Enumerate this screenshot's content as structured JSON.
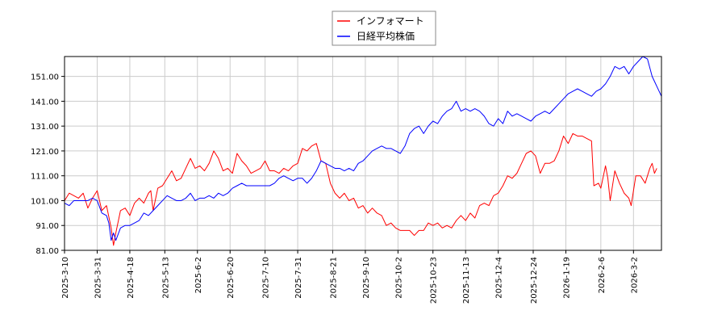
{
  "chart_data": {
    "type": "line",
    "title": "",
    "xlabel": "",
    "ylabel": "",
    "ylim": [
      81.0,
      159.0
    ],
    "y_ticks": [
      "81.00",
      "91.00",
      "101.00",
      "111.00",
      "121.00",
      "131.00",
      "141.00",
      "151.00"
    ],
    "x_tick_labels": [
      "2025-3-10",
      "2025-3-31",
      "2025-4-18",
      "2025-5-13",
      "2025-6-2",
      "2025-6-20",
      "2025-7-10",
      "2025-7-31",
      "2025-8-21",
      "2025-9-10",
      "2025-10-2",
      "2025-10-23",
      "2025-11-13",
      "2025-12-4",
      "2025-12-24",
      "2026-1-19",
      "2026-2-6",
      "2026-3-2"
    ],
    "x_tick_pos": [
      0,
      14,
      28,
      43,
      57,
      71,
      86,
      100,
      115,
      129,
      143,
      158,
      172,
      186,
      201,
      215,
      230,
      244
    ],
    "x_max": 251,
    "grid": true,
    "legend_position": "top-center",
    "series": [
      {
        "name": "インフォマート",
        "color": "#ff0000",
        "points": [
          [
            0,
            101
          ],
          [
            2,
            104
          ],
          [
            4,
            103
          ],
          [
            6,
            102
          ],
          [
            8,
            104
          ],
          [
            10,
            98
          ],
          [
            12,
            102
          ],
          [
            14,
            105
          ],
          [
            16,
            97
          ],
          [
            18,
            99
          ],
          [
            20,
            90
          ],
          [
            21,
            83
          ],
          [
            22,
            88
          ],
          [
            24,
            97
          ],
          [
            26,
            98
          ],
          [
            28,
            95
          ],
          [
            30,
            100
          ],
          [
            32,
            102
          ],
          [
            34,
            100
          ],
          [
            36,
            104
          ],
          [
            37,
            105
          ],
          [
            38,
            97
          ],
          [
            40,
            106
          ],
          [
            42,
            107
          ],
          [
            44,
            110
          ],
          [
            46,
            113
          ],
          [
            48,
            109
          ],
          [
            50,
            110
          ],
          [
            52,
            114
          ],
          [
            54,
            118
          ],
          [
            56,
            114
          ],
          [
            58,
            115
          ],
          [
            60,
            113
          ],
          [
            62,
            116
          ],
          [
            64,
            121
          ],
          [
            66,
            118
          ],
          [
            68,
            113
          ],
          [
            70,
            114
          ],
          [
            72,
            112
          ],
          [
            74,
            120
          ],
          [
            76,
            117
          ],
          [
            78,
            115
          ],
          [
            80,
            112
          ],
          [
            82,
            113
          ],
          [
            84,
            114
          ],
          [
            86,
            117
          ],
          [
            88,
            113
          ],
          [
            90,
            113
          ],
          [
            92,
            112
          ],
          [
            94,
            114
          ],
          [
            96,
            113
          ],
          [
            98,
            115
          ],
          [
            100,
            116
          ],
          [
            102,
            122
          ],
          [
            104,
            121
          ],
          [
            106,
            123
          ],
          [
            108,
            124
          ],
          [
            110,
            117
          ],
          [
            112,
            116
          ],
          [
            114,
            108
          ],
          [
            116,
            104
          ],
          [
            118,
            102
          ],
          [
            120,
            104
          ],
          [
            122,
            101
          ],
          [
            124,
            102
          ],
          [
            126,
            98
          ],
          [
            128,
            99
          ],
          [
            130,
            96
          ],
          [
            132,
            98
          ],
          [
            134,
            96
          ],
          [
            136,
            95
          ],
          [
            138,
            91
          ],
          [
            140,
            92
          ],
          [
            142,
            90
          ],
          [
            144,
            89
          ],
          [
            146,
            89
          ],
          [
            148,
            89
          ],
          [
            150,
            87
          ],
          [
            152,
            89
          ],
          [
            154,
            89
          ],
          [
            156,
            92
          ],
          [
            158,
            91
          ],
          [
            160,
            92
          ],
          [
            162,
            90
          ],
          [
            164,
            91
          ],
          [
            166,
            90
          ],
          [
            168,
            93
          ],
          [
            170,
            95
          ],
          [
            172,
            93
          ],
          [
            174,
            96
          ],
          [
            176,
            94
          ],
          [
            178,
            99
          ],
          [
            180,
            100
          ],
          [
            182,
            99
          ],
          [
            184,
            103
          ],
          [
            186,
            104
          ],
          [
            188,
            107
          ],
          [
            190,
            111
          ],
          [
            192,
            110
          ],
          [
            194,
            112
          ],
          [
            196,
            116
          ],
          [
            198,
            120
          ],
          [
            200,
            121
          ],
          [
            202,
            119
          ],
          [
            204,
            112
          ],
          [
            206,
            116
          ],
          [
            208,
            116
          ],
          [
            210,
            117
          ],
          [
            212,
            121
          ],
          [
            214,
            127
          ],
          [
            216,
            124
          ],
          [
            218,
            128
          ],
          [
            220,
            127
          ],
          [
            222,
            127
          ],
          [
            224,
            126
          ],
          [
            226,
            125
          ],
          [
            227,
            107
          ],
          [
            229,
            108
          ],
          [
            230,
            106
          ],
          [
            232,
            115
          ],
          [
            233,
            110
          ],
          [
            234,
            101
          ],
          [
            236,
            113
          ],
          [
            238,
            108
          ],
          [
            240,
            104
          ],
          [
            242,
            102
          ],
          [
            243,
            99
          ],
          [
            245,
            111
          ],
          [
            247,
            111
          ],
          [
            249,
            108
          ],
          [
            251,
            114
          ],
          [
            252,
            116
          ],
          [
            253,
            112
          ],
          [
            254,
            114
          ]
        ]
      },
      {
        "name": "日経平均株価",
        "color": "#0000ff",
        "points": [
          [
            0,
            100
          ],
          [
            2,
            99
          ],
          [
            4,
            101
          ],
          [
            6,
            101
          ],
          [
            8,
            101
          ],
          [
            10,
            101
          ],
          [
            12,
            102
          ],
          [
            14,
            101
          ],
          [
            16,
            96
          ],
          [
            18,
            95
          ],
          [
            19,
            92
          ],
          [
            20,
            85
          ],
          [
            21,
            88
          ],
          [
            22,
            85
          ],
          [
            24,
            90
          ],
          [
            26,
            91
          ],
          [
            28,
            91
          ],
          [
            30,
            92
          ],
          [
            32,
            93
          ],
          [
            34,
            96
          ],
          [
            36,
            95
          ],
          [
            38,
            97
          ],
          [
            40,
            99
          ],
          [
            42,
            101
          ],
          [
            44,
            103
          ],
          [
            46,
            102
          ],
          [
            48,
            101
          ],
          [
            50,
            101
          ],
          [
            52,
            102
          ],
          [
            54,
            104
          ],
          [
            56,
            101
          ],
          [
            58,
            102
          ],
          [
            60,
            102
          ],
          [
            62,
            103
          ],
          [
            64,
            102
          ],
          [
            66,
            104
          ],
          [
            68,
            103
          ],
          [
            70,
            104
          ],
          [
            72,
            106
          ],
          [
            74,
            107
          ],
          [
            76,
            108
          ],
          [
            78,
            107
          ],
          [
            80,
            107
          ],
          [
            82,
            107
          ],
          [
            84,
            107
          ],
          [
            86,
            107
          ],
          [
            88,
            107
          ],
          [
            90,
            108
          ],
          [
            92,
            110
          ],
          [
            94,
            111
          ],
          [
            96,
            110
          ],
          [
            98,
            109
          ],
          [
            100,
            110
          ],
          [
            102,
            110
          ],
          [
            104,
            108
          ],
          [
            106,
            110
          ],
          [
            108,
            113
          ],
          [
            110,
            117
          ],
          [
            112,
            116
          ],
          [
            114,
            115
          ],
          [
            116,
            114
          ],
          [
            118,
            114
          ],
          [
            120,
            113
          ],
          [
            122,
            114
          ],
          [
            124,
            113
          ],
          [
            126,
            116
          ],
          [
            128,
            117
          ],
          [
            130,
            119
          ],
          [
            132,
            121
          ],
          [
            134,
            122
          ],
          [
            136,
            123
          ],
          [
            138,
            122
          ],
          [
            140,
            122
          ],
          [
            142,
            121
          ],
          [
            144,
            120
          ],
          [
            146,
            123
          ],
          [
            148,
            128
          ],
          [
            150,
            130
          ],
          [
            152,
            131
          ],
          [
            154,
            128
          ],
          [
            156,
            131
          ],
          [
            158,
            133
          ],
          [
            160,
            132
          ],
          [
            162,
            135
          ],
          [
            164,
            137
          ],
          [
            166,
            138
          ],
          [
            168,
            141
          ],
          [
            170,
            137
          ],
          [
            172,
            138
          ],
          [
            174,
            137
          ],
          [
            176,
            138
          ],
          [
            178,
            137
          ],
          [
            180,
            135
          ],
          [
            182,
            132
          ],
          [
            184,
            131
          ],
          [
            186,
            134
          ],
          [
            188,
            132
          ],
          [
            190,
            137
          ],
          [
            192,
            135
          ],
          [
            194,
            136
          ],
          [
            196,
            135
          ],
          [
            198,
            134
          ],
          [
            200,
            133
          ],
          [
            202,
            135
          ],
          [
            204,
            136
          ],
          [
            206,
            137
          ],
          [
            208,
            136
          ],
          [
            210,
            138
          ],
          [
            212,
            140
          ],
          [
            214,
            142
          ],
          [
            216,
            144
          ],
          [
            218,
            145
          ],
          [
            220,
            146
          ],
          [
            222,
            145
          ],
          [
            224,
            144
          ],
          [
            226,
            143
          ],
          [
            228,
            145
          ],
          [
            230,
            146
          ],
          [
            232,
            148
          ],
          [
            234,
            151
          ],
          [
            236,
            155
          ],
          [
            238,
            154
          ],
          [
            240,
            155
          ],
          [
            242,
            152
          ],
          [
            244,
            155
          ],
          [
            246,
            157
          ],
          [
            248,
            159
          ],
          [
            250,
            158
          ],
          [
            252,
            151
          ],
          [
            253,
            149
          ],
          [
            254,
            147
          ],
          [
            255,
            145
          ],
          [
            256,
            143
          ]
        ]
      }
    ]
  }
}
